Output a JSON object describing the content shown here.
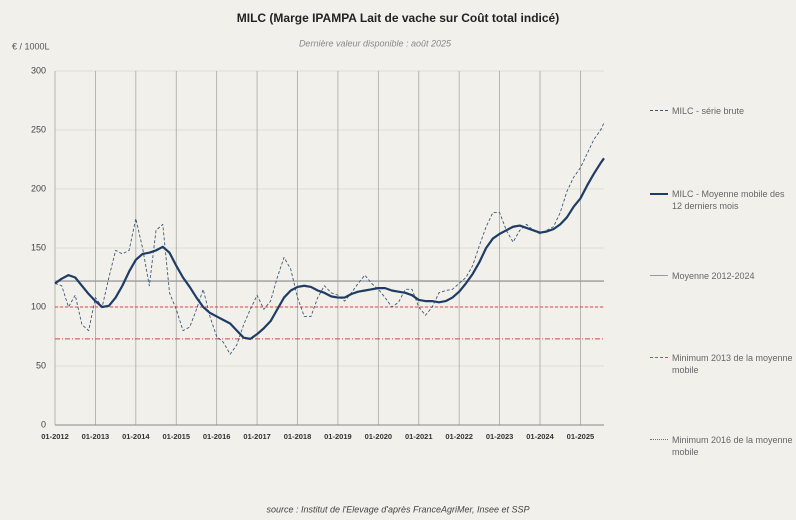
{
  "chart_data": {
    "type": "line",
    "title": "MILC (Marge IPAMPA Lait de vache sur Coût total indicé)",
    "subtitle": "Dernière valeur disponible : août 2025",
    "y_label": "€ / 1000L",
    "source": "source : Institut de l'Elevage d'après FranceAgriMer, Insee et SSP",
    "x": [
      "01-2012",
      "03-2012",
      "05-2012",
      "07-2012",
      "09-2012",
      "11-2012",
      "01-2013",
      "03-2013",
      "05-2013",
      "07-2013",
      "09-2013",
      "11-2013",
      "01-2014",
      "03-2014",
      "05-2014",
      "07-2014",
      "09-2014",
      "11-2014",
      "01-2015",
      "03-2015",
      "05-2015",
      "07-2015",
      "09-2015",
      "11-2015",
      "01-2016",
      "03-2016",
      "05-2016",
      "07-2016",
      "09-2016",
      "11-2016",
      "01-2017",
      "03-2017",
      "05-2017",
      "07-2017",
      "09-2017",
      "11-2017",
      "01-2018",
      "03-2018",
      "05-2018",
      "07-2018",
      "09-2018",
      "11-2018",
      "01-2019",
      "03-2019",
      "05-2019",
      "07-2019",
      "09-2019",
      "11-2019",
      "01-2020",
      "03-2020",
      "05-2020",
      "07-2020",
      "09-2020",
      "11-2020",
      "01-2021",
      "03-2021",
      "05-2021",
      "07-2021",
      "09-2021",
      "11-2021",
      "01-2022",
      "03-2022",
      "05-2022",
      "07-2022",
      "09-2022",
      "11-2022",
      "01-2023",
      "03-2023",
      "05-2023",
      "07-2023",
      "09-2023",
      "11-2023",
      "01-2024",
      "03-2024",
      "05-2024",
      "07-2024",
      "09-2024",
      "11-2024",
      "01-2025",
      "03-2025",
      "05-2025",
      "07-2025",
      "08-2025"
    ],
    "series": [
      {
        "name": "MILC - série brute",
        "color": "#3d5a7a",
        "style": "dashed",
        "values": [
          120,
          118,
          100,
          110,
          85,
          80,
          108,
          100,
          125,
          148,
          145,
          148,
          175,
          150,
          118,
          165,
          170,
          112,
          98,
          80,
          83,
          98,
          115,
          92,
          75,
          70,
          60,
          68,
          85,
          98,
          110,
          98,
          105,
          125,
          142,
          132,
          108,
          92,
          92,
          108,
          118,
          112,
          110,
          105,
          112,
          120,
          127,
          120,
          115,
          108,
          100,
          104,
          115,
          115,
          100,
          93,
          100,
          112,
          114,
          115,
          120,
          125,
          135,
          152,
          168,
          180,
          180,
          165,
          155,
          165,
          170,
          165,
          162,
          165,
          168,
          180,
          198,
          210,
          218,
          230,
          242,
          250,
          256
        ]
      },
      {
        "name": "MILC - Moyenne mobile des 12 derniers mois",
        "color": "#1f3c66",
        "style": "solid",
        "values": [
          120,
          124,
          127,
          125,
          118,
          111,
          105,
          100,
          101,
          108,
          118,
          130,
          140,
          145,
          146,
          148,
          151,
          146,
          135,
          125,
          117,
          108,
          100,
          95,
          92,
          89,
          86,
          80,
          74,
          73,
          77,
          82,
          88,
          98,
          108,
          114,
          117,
          118,
          117,
          114,
          112,
          109,
          108,
          108,
          111,
          113,
          114,
          115,
          116,
          116,
          114,
          113,
          112,
          110,
          106,
          105,
          105,
          104,
          105,
          108,
          113,
          120,
          128,
          138,
          150,
          158,
          162,
          165,
          168,
          169,
          167,
          165,
          163,
          164,
          166,
          170,
          176,
          185,
          192,
          203,
          213,
          222,
          226
        ]
      }
    ],
    "reference_lines": [
      {
        "name": "Moyenne 2012-2024",
        "value": 122,
        "color": "#9a9a9a",
        "style": "solid"
      },
      {
        "name": "Minimum 2013  de la moyenne mobile",
        "value": 100,
        "color": "#d9453f",
        "style": "dashed"
      },
      {
        "name": "Minimum 2016 de la moyenne mobile",
        "value": 73,
        "color": "#d9453f",
        "style": "dashdot"
      }
    ],
    "xlim": [
      "01-2012",
      "08-2025"
    ],
    "xticks": [
      "01-2012",
      "01-2013",
      "01-2014",
      "01-2015",
      "01-2016",
      "01-2017",
      "01-2018",
      "01-2019",
      "01-2020",
      "01-2021",
      "01-2022",
      "01-2023",
      "01-2024",
      "01-2025"
    ],
    "ylim": [
      0,
      300
    ],
    "yticks": [
      0,
      50,
      100,
      150,
      200,
      250,
      300
    ],
    "grid": true
  }
}
